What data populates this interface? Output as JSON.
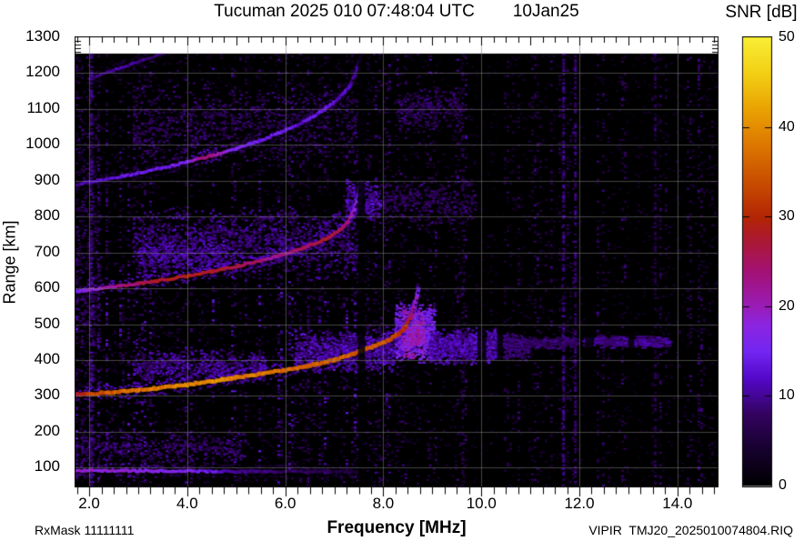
{
  "chart_data": {
    "type": "heatmap",
    "variant": "ionogram",
    "title": "Tucuman 2025 010 07:48:04 UTC",
    "date_label": "10Jan25",
    "xlabel": "Frequency [MHz]",
    "ylabel": "Range [km]",
    "footer_left": "RxMask 11111111",
    "footer_right": "VIPIR  TMJ20_2025010074804.RIQ",
    "xlim": [
      1.72,
      14.82
    ],
    "ylim": [
      50,
      1300
    ],
    "data_max_range": 1255,
    "x_minor_step": 0.25,
    "y_grid_step": 100,
    "grid_color": "rgba(125,125,125,0.55)",
    "plot_bg": "#000000",
    "page_bg": "#ffffff",
    "x_ticks": [
      {
        "v": 2.0,
        "label": "2.0"
      },
      {
        "v": 4.0,
        "label": "4.0"
      },
      {
        "v": 6.0,
        "label": "6.0"
      },
      {
        "v": 8.0,
        "label": "8.0"
      },
      {
        "v": 10.0,
        "label": "10.0"
      },
      {
        "v": 12.0,
        "label": "12.0"
      },
      {
        "v": 14.0,
        "label": "14.0"
      }
    ],
    "y_ticks": [
      {
        "v": 100,
        "label": "100"
      },
      {
        "v": 200,
        "label": "200"
      },
      {
        "v": 300,
        "label": "300"
      },
      {
        "v": 400,
        "label": "400"
      },
      {
        "v": 500,
        "label": "500"
      },
      {
        "v": 600,
        "label": "600"
      },
      {
        "v": 700,
        "label": "700"
      },
      {
        "v": 800,
        "label": "800"
      },
      {
        "v": 900,
        "label": "900"
      },
      {
        "v": 1000,
        "label": "1000"
      },
      {
        "v": 1100,
        "label": "1100"
      },
      {
        "v": 1200,
        "label": "1200"
      },
      {
        "v": 1300,
        "label": "1300"
      }
    ],
    "colorbar": {
      "label": "SNR [dB]",
      "min": 0,
      "max": 50,
      "ticks": [
        {
          "v": 0,
          "label": "0"
        },
        {
          "v": 10,
          "label": "10"
        },
        {
          "v": 20,
          "label": "20"
        },
        {
          "v": 30,
          "label": "30"
        },
        {
          "v": 40,
          "label": "40"
        },
        {
          "v": 50,
          "label": "50"
        }
      ],
      "stops": [
        [
          0,
          "#000000"
        ],
        [
          4,
          "#16012e"
        ],
        [
          8,
          "#33035f"
        ],
        [
          12,
          "#5408c9"
        ],
        [
          15,
          "#7326f2"
        ],
        [
          18,
          "#8c25e0"
        ],
        [
          20,
          "#9a1cb8"
        ],
        [
          24,
          "#a31173"
        ],
        [
          28,
          "#ad1a28"
        ],
        [
          30,
          "#b32604"
        ],
        [
          34,
          "#c94e00"
        ],
        [
          38,
          "#dd7700"
        ],
        [
          42,
          "#eaa203"
        ],
        [
          46,
          "#f2cf14"
        ],
        [
          50,
          "#f8ee35"
        ]
      ]
    },
    "features": {
      "traces": [
        {
          "name": "sporadic-E-layer",
          "width": 3,
          "points": [
            [
              1.72,
              92
            ],
            [
              3.0,
              91
            ],
            [
              5.0,
              89
            ],
            [
              7.5,
              88
            ]
          ],
          "snr": [
            [
              1.72,
              19
            ],
            [
              2.6,
              18
            ],
            [
              3.6,
              17
            ],
            [
              4.4,
              14
            ],
            [
              5.0,
              10
            ],
            [
              5.8,
              8
            ],
            [
              7.0,
              6
            ],
            [
              7.5,
              5
            ]
          ]
        },
        {
          "name": "F-trace-hop4",
          "width": 2.5,
          "points": [
            [
              2.0,
              1185
            ],
            [
              2.5,
              1208
            ],
            [
              3.0,
              1232
            ],
            [
              3.5,
              1255
            ]
          ],
          "snr": [
            [
              2.0,
              9
            ],
            [
              2.6,
              11
            ],
            [
              3.1,
              10
            ],
            [
              3.5,
              8
            ]
          ]
        },
        {
          "name": "F-trace-hop3",
          "width": 3,
          "points": [
            [
              1.72,
              888
            ],
            [
              2.0,
              896
            ],
            [
              2.5,
              908
            ],
            [
              3.0,
              921
            ],
            [
              3.5,
              936
            ],
            [
              4.0,
              952
            ],
            [
              4.5,
              970
            ],
            [
              5.0,
              990
            ],
            [
              5.5,
              1013
            ],
            [
              6.0,
              1040
            ],
            [
              6.4,
              1066
            ],
            [
              6.8,
              1098
            ],
            [
              7.1,
              1130
            ],
            [
              7.3,
              1160
            ],
            [
              7.45,
              1200
            ],
            [
              7.55,
              1250
            ]
          ],
          "snr": [
            [
              1.72,
              10
            ],
            [
              2.5,
              13
            ],
            [
              3.2,
              14
            ],
            [
              4.0,
              16
            ],
            [
              4.3,
              24
            ],
            [
              4.6,
              21
            ],
            [
              5.0,
              15
            ],
            [
              5.6,
              14
            ],
            [
              6.2,
              13
            ],
            [
              6.8,
              13
            ],
            [
              7.2,
              12
            ],
            [
              7.55,
              9
            ]
          ]
        },
        {
          "name": "F-trace-hop2",
          "width": 3.2,
          "points": [
            [
              1.72,
              591
            ],
            [
              2.0,
              596
            ],
            [
              2.5,
              604
            ],
            [
              3.0,
              613
            ],
            [
              3.5,
              623
            ],
            [
              4.0,
              634
            ],
            [
              4.5,
              647
            ],
            [
              5.0,
              661
            ],
            [
              5.5,
              677
            ],
            [
              6.0,
              696
            ],
            [
              6.4,
              714
            ],
            [
              6.8,
              736
            ],
            [
              7.1,
              760
            ],
            [
              7.3,
              788
            ],
            [
              7.42,
              822
            ],
            [
              7.5,
              862
            ],
            [
              7.55,
              900
            ]
          ],
          "snr": [
            [
              1.72,
              14
            ],
            [
              2.2,
              20
            ],
            [
              2.8,
              24
            ],
            [
              3.4,
              27
            ],
            [
              3.9,
              29
            ],
            [
              4.4,
              28
            ],
            [
              4.9,
              27
            ],
            [
              5.4,
              24
            ],
            [
              5.9,
              22
            ],
            [
              6.4,
              25
            ],
            [
              6.9,
              27
            ],
            [
              7.2,
              26
            ],
            [
              7.35,
              22
            ],
            [
              7.45,
              17
            ],
            [
              7.55,
              12
            ]
          ]
        },
        {
          "name": "F-trace-hop1",
          "width": 4,
          "points": [
            [
              1.72,
              303
            ],
            [
              2.0,
              306
            ],
            [
              2.5,
              310
            ],
            [
              3.0,
              316
            ],
            [
              3.5,
              323
            ],
            [
              4.0,
              331
            ],
            [
              4.5,
              341
            ],
            [
              5.0,
              351
            ],
            [
              5.5,
              361
            ],
            [
              6.0,
              372
            ],
            [
              6.5,
              385
            ],
            [
              7.0,
              400
            ],
            [
              7.4,
              418
            ],
            [
              7.8,
              438
            ],
            [
              8.1,
              455
            ],
            [
              8.3,
              472
            ],
            [
              8.45,
              492
            ],
            [
              8.55,
              515
            ],
            [
              8.62,
              542
            ],
            [
              8.68,
              572
            ],
            [
              8.72,
              600
            ]
          ],
          "snr": [
            [
              1.72,
              26
            ],
            [
              2.1,
              33
            ],
            [
              2.6,
              36
            ],
            [
              3.2,
              38
            ],
            [
              4.0,
              39
            ],
            [
              4.6,
              40
            ],
            [
              5.2,
              38
            ],
            [
              6.0,
              37
            ],
            [
              6.6,
              36
            ],
            [
              7.2,
              36
            ],
            [
              7.8,
              35
            ],
            [
              8.2,
              34
            ],
            [
              8.45,
              31
            ],
            [
              8.55,
              27
            ],
            [
              8.65,
              21
            ],
            [
              8.72,
              15
            ]
          ]
        }
      ],
      "blobs": [
        {
          "f": [
            2.9,
            5.6
          ],
          "R": [
            330,
            430
          ],
          "n": 650,
          "snr": [
            6,
            13
          ]
        },
        {
          "f": [
            6.2,
            8.25
          ],
          "R": [
            360,
            485
          ],
          "n": 850,
          "snr": [
            7,
            14
          ]
        },
        {
          "f": [
            8.25,
            9.05
          ],
          "R": [
            390,
            560
          ],
          "n": 900,
          "snr": [
            11,
            19
          ]
        },
        {
          "f": [
            8.4,
            8.85
          ],
          "R": [
            400,
            545
          ],
          "n": 300,
          "snr": [
            15,
            24
          ]
        },
        {
          "f": [
            8.95,
            10.35
          ],
          "R": [
            385,
            490
          ],
          "n": 850,
          "snr": [
            8,
            14
          ]
        },
        {
          "f": [
            10.35,
            11.0
          ],
          "R": [
            395,
            478
          ],
          "n": 230,
          "snr": [
            7,
            11
          ]
        },
        {
          "f": [
            2.9,
            7.5
          ],
          "R": [
            620,
            830
          ],
          "n": 1400,
          "snr": [
            6,
            12
          ]
        },
        {
          "f": [
            3.0,
            4.8
          ],
          "R": [
            630,
            750
          ],
          "n": 320,
          "snr": [
            8,
            13
          ]
        },
        {
          "f": [
            7.25,
            7.95
          ],
          "R": [
            780,
            905
          ],
          "n": 260,
          "snr": [
            8,
            14
          ]
        },
        {
          "f": [
            8.0,
            9.9
          ],
          "R": [
            760,
            925
          ],
          "n": 330,
          "snr": [
            5,
            10
          ]
        },
        {
          "f": [
            8.3,
            9.6
          ],
          "R": [
            1030,
            1165
          ],
          "n": 280,
          "snr": [
            5,
            10
          ]
        },
        {
          "f": [
            2.9,
            7.6
          ],
          "R": [
            930,
            1185
          ],
          "n": 850,
          "snr": [
            5,
            10
          ]
        },
        {
          "f": [
            12.1,
            13.85
          ],
          "R": [
            432,
            468
          ],
          "n": 240,
          "snr": [
            7,
            12
          ],
          "cell": [
            6,
            2
          ]
        },
        {
          "f": [
            10.6,
            12.0
          ],
          "R": [
            430,
            465
          ],
          "n": 150,
          "snr": [
            6,
            10
          ],
          "cell": [
            5,
            2
          ]
        },
        {
          "f": [
            1.72,
            5.2
          ],
          "R": [
            100,
            210
          ],
          "n": 450,
          "snr": [
            5,
            11
          ]
        },
        {
          "f": [
            1.72,
            2.25
          ],
          "R": [
            60,
            1255
          ],
          "n": 420,
          "snr": [
            4,
            10
          ]
        }
      ],
      "noise_bands": [
        {
          "f": [
            1.72,
            14.82
          ],
          "R": [
            50,
            1255
          ],
          "p": 0.1,
          "snr": [
            2,
            6
          ]
        },
        {
          "f": [
            1.72,
            7.6
          ],
          "R": [
            60,
            640
          ],
          "p": 0.13,
          "snr": [
            4,
            11
          ]
        },
        {
          "f": [
            1.72,
            7.6
          ],
          "R": [
            640,
            1255
          ],
          "p": 0.08,
          "snr": [
            3,
            9
          ]
        },
        {
          "f": [
            7.6,
            9.9
          ],
          "R": [
            60,
            1255
          ],
          "p": 0.06,
          "snr": [
            3,
            9
          ]
        },
        {
          "f": [
            9.9,
            14.82
          ],
          "R": [
            50,
            1255
          ],
          "p": 0.045,
          "snr": [
            3,
            8
          ]
        }
      ],
      "rfi_lines": [
        {
          "f": 2.05,
          "p": 0.55,
          "snr": [
            6,
            12
          ]
        },
        {
          "f": 6.47,
          "p": 0.35,
          "snr": [
            4,
            9
          ]
        },
        {
          "f": 9.62,
          "p": 0.3,
          "snr": [
            4,
            9
          ]
        },
        {
          "f": 11.68,
          "p": 0.55,
          "snr": [
            6,
            12
          ]
        },
        {
          "f": 11.92,
          "p": 0.5,
          "snr": [
            6,
            11
          ]
        },
        {
          "f": 13.55,
          "p": 0.3,
          "snr": [
            4,
            9
          ]
        }
      ],
      "dark_columns": [
        [
          7.48,
          7.63
        ],
        [
          9.92,
          10.1
        ],
        [
          10.32,
          10.44
        ],
        [
          12.12,
          12.3
        ],
        [
          13.0,
          13.12
        ]
      ]
    }
  }
}
